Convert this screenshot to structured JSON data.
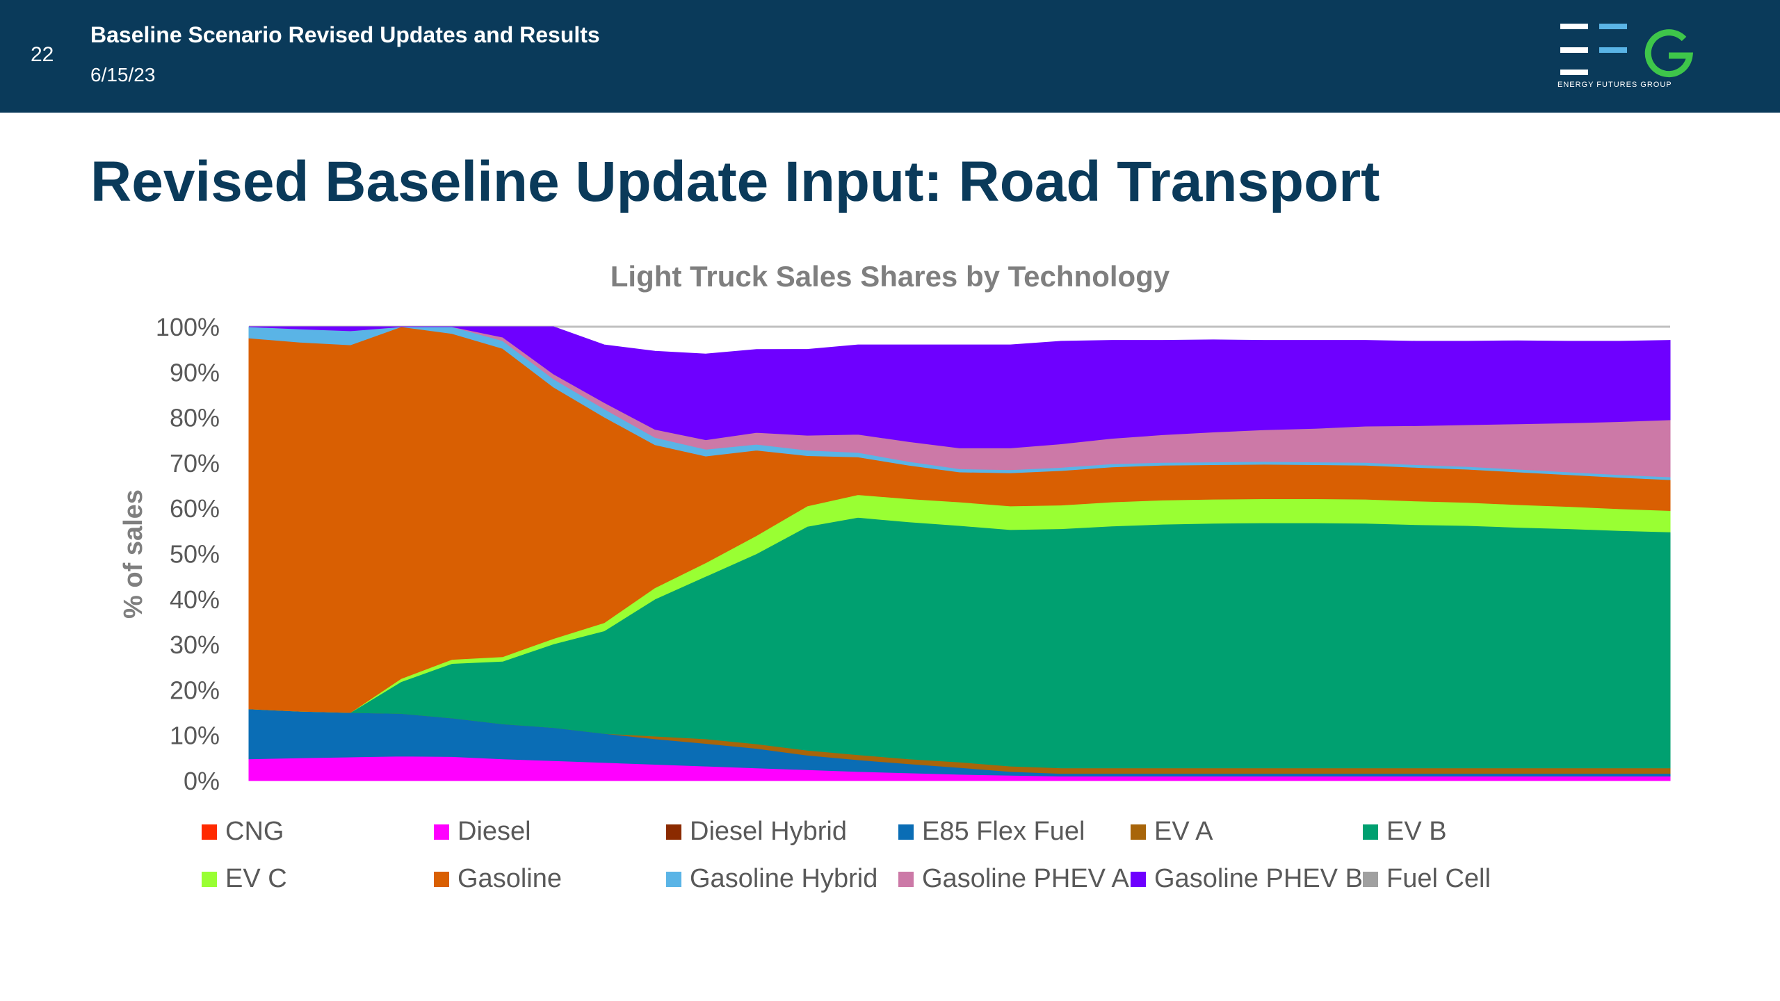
{
  "header": {
    "slide_number": "22",
    "title": "Baseline Scenario Revised Updates and Results",
    "date": "6/15/23",
    "logo_text": "ENERGY FUTURES GROUP"
  },
  "slide_title": "Revised Baseline Update Input: Road Transport",
  "chart_data": {
    "type": "area",
    "stacked": true,
    "title": "Light Truck Sales Shares by Technology",
    "ylabel": "% of sales",
    "xlabel": "",
    "ylim": [
      0,
      100
    ],
    "y_ticks": [
      "0%",
      "10%",
      "20%",
      "30%",
      "40%",
      "50%",
      "60%",
      "70%",
      "80%",
      "90%",
      "100%"
    ],
    "grid": false,
    "legend_position": "bottom",
    "x": [
      0,
      1,
      2,
      3,
      4,
      5,
      6,
      7,
      8,
      9,
      10,
      11,
      12,
      13,
      14,
      15,
      16,
      17,
      18,
      19,
      20,
      21,
      22,
      23,
      24,
      25,
      26,
      27,
      28
    ],
    "series": [
      {
        "name": "CNG",
        "color": "#ff2a00",
        "values": [
          0,
          0,
          0,
          0,
          0,
          0,
          0,
          0,
          0,
          0,
          0,
          0,
          0,
          0,
          0,
          0,
          0,
          0,
          0,
          0,
          0,
          0,
          0,
          0,
          0,
          0,
          0,
          0,
          0
        ]
      },
      {
        "name": "Diesel",
        "color": "#ff00ff",
        "values": [
          4.8,
          5,
          5.2,
          5.4,
          5.3,
          4.8,
          4.4,
          4,
          3.6,
          3.2,
          2.8,
          2.4,
          2,
          1.7,
          1.4,
          1.2,
          1,
          1,
          1,
          1,
          1,
          1,
          1,
          1,
          1,
          1,
          1,
          1,
          1
        ]
      },
      {
        "name": "Diesel Hybrid",
        "color": "#8b2a00",
        "values": [
          0,
          0,
          0,
          0,
          0,
          0,
          0,
          0,
          0,
          0,
          0,
          0,
          0,
          0,
          0,
          0,
          0,
          0,
          0,
          0,
          0,
          0,
          0,
          0,
          0,
          0,
          0,
          0,
          0
        ]
      },
      {
        "name": "E85 Flex Fuel",
        "color": "#0a6db5",
        "values": [
          11,
          10.3,
          9.8,
          9.4,
          8.5,
          7.7,
          7.3,
          6.4,
          5.6,
          5,
          4.3,
          3.2,
          2.6,
          2,
          1.5,
          0.8,
          0.6,
          0.6,
          0.6,
          0.6,
          0.6,
          0.6,
          0.6,
          0.6,
          0.6,
          0.6,
          0.6,
          0.6,
          0.6
        ]
      },
      {
        "name": "EV A",
        "color": "#a8650a",
        "values": [
          0,
          0,
          0,
          0,
          0,
          0,
          0,
          0,
          0.6,
          1,
          1,
          1.1,
          1.1,
          1.1,
          1.2,
          1.2,
          1.2,
          1.2,
          1.2,
          1.2,
          1.2,
          1.2,
          1.2,
          1.2,
          1.2,
          1.2,
          1.2,
          1.2,
          1.2
        ]
      },
      {
        "name": "EV B",
        "color": "#00a070",
        "values": [
          0,
          0,
          0,
          7,
          12,
          13.8,
          18.4,
          22.6,
          30.2,
          35.8,
          41.9,
          49.3,
          52.3,
          52.2,
          52.1,
          52.1,
          52.7,
          53.3,
          53.7,
          53.9,
          54,
          54,
          53.9,
          53.6,
          53.4,
          53,
          52.7,
          52.3,
          52
        ]
      },
      {
        "name": "EV C",
        "color": "#99ff33",
        "values": [
          0,
          0,
          0,
          0.7,
          0.9,
          1,
          1.2,
          1.8,
          2.5,
          3,
          4,
          4.5,
          5,
          5.1,
          5.2,
          5.2,
          5.2,
          5.3,
          5.3,
          5.3,
          5.3,
          5.3,
          5.3,
          5.2,
          5.1,
          5,
          4.9,
          4.8,
          4.7
        ]
      },
      {
        "name": "Gasoline",
        "color": "#d95f02",
        "values": [
          81.7,
          81.3,
          81,
          78.1,
          71.8,
          67.9,
          55.4,
          45.3,
          31.5,
          23.5,
          18.8,
          11.1,
          8.3,
          7.4,
          6.6,
          7.3,
          7.6,
          7.7,
          7.7,
          7.6,
          7.6,
          7.5,
          7.5,
          7.4,
          7.3,
          7.2,
          7,
          6.9,
          6.8
        ]
      },
      {
        "name": "Gasoline Hybrid",
        "color": "#5ab4e6",
        "values": [
          2.5,
          2.9,
          3.1,
          2.3,
          1.8,
          1.7,
          1.8,
          1.8,
          1.6,
          1.5,
          1.3,
          1.2,
          1,
          0.8,
          0.7,
          0.7,
          0.7,
          0.7,
          0.6,
          0.6,
          0.6,
          0.6,
          0.6,
          0.6,
          0.6,
          0.6,
          0.6,
          0.6,
          0.6
        ]
      },
      {
        "name": "Gasoline PHEV A",
        "color": "#cc79a7",
        "values": [
          0,
          0,
          0,
          0.3,
          0.5,
          0.8,
          1.1,
          1.4,
          1.8,
          2.1,
          2.6,
          3.3,
          4,
          4.4,
          4.6,
          4.8,
          5.2,
          5.6,
          6.1,
          6.6,
          7,
          7.4,
          8,
          8.6,
          9.2,
          10,
          10.8,
          11.7,
          12.6
        ]
      },
      {
        "name": "Gasoline PHEV B",
        "color": "#6e00ff",
        "values": [
          0,
          0.5,
          0.9,
          1.8,
          3.2,
          3.3,
          11.4,
          12.7,
          17.2,
          18.9,
          18.3,
          18.9,
          19.7,
          21.3,
          22.7,
          22.7,
          22.6,
          21.6,
          20.8,
          20.3,
          19.7,
          19.4,
          18.9,
          18.6,
          18.4,
          18.3,
          18,
          17.7,
          17.5
        ]
      },
      {
        "name": "Fuel Cell",
        "color": "#a0a0a0",
        "values": [
          0,
          0,
          0,
          0,
          0,
          0,
          0,
          0,
          0,
          0,
          0,
          0,
          0,
          0,
          0,
          0,
          0,
          0,
          0,
          0,
          0,
          0,
          0,
          0,
          0,
          0,
          0,
          0,
          0
        ]
      }
    ]
  }
}
